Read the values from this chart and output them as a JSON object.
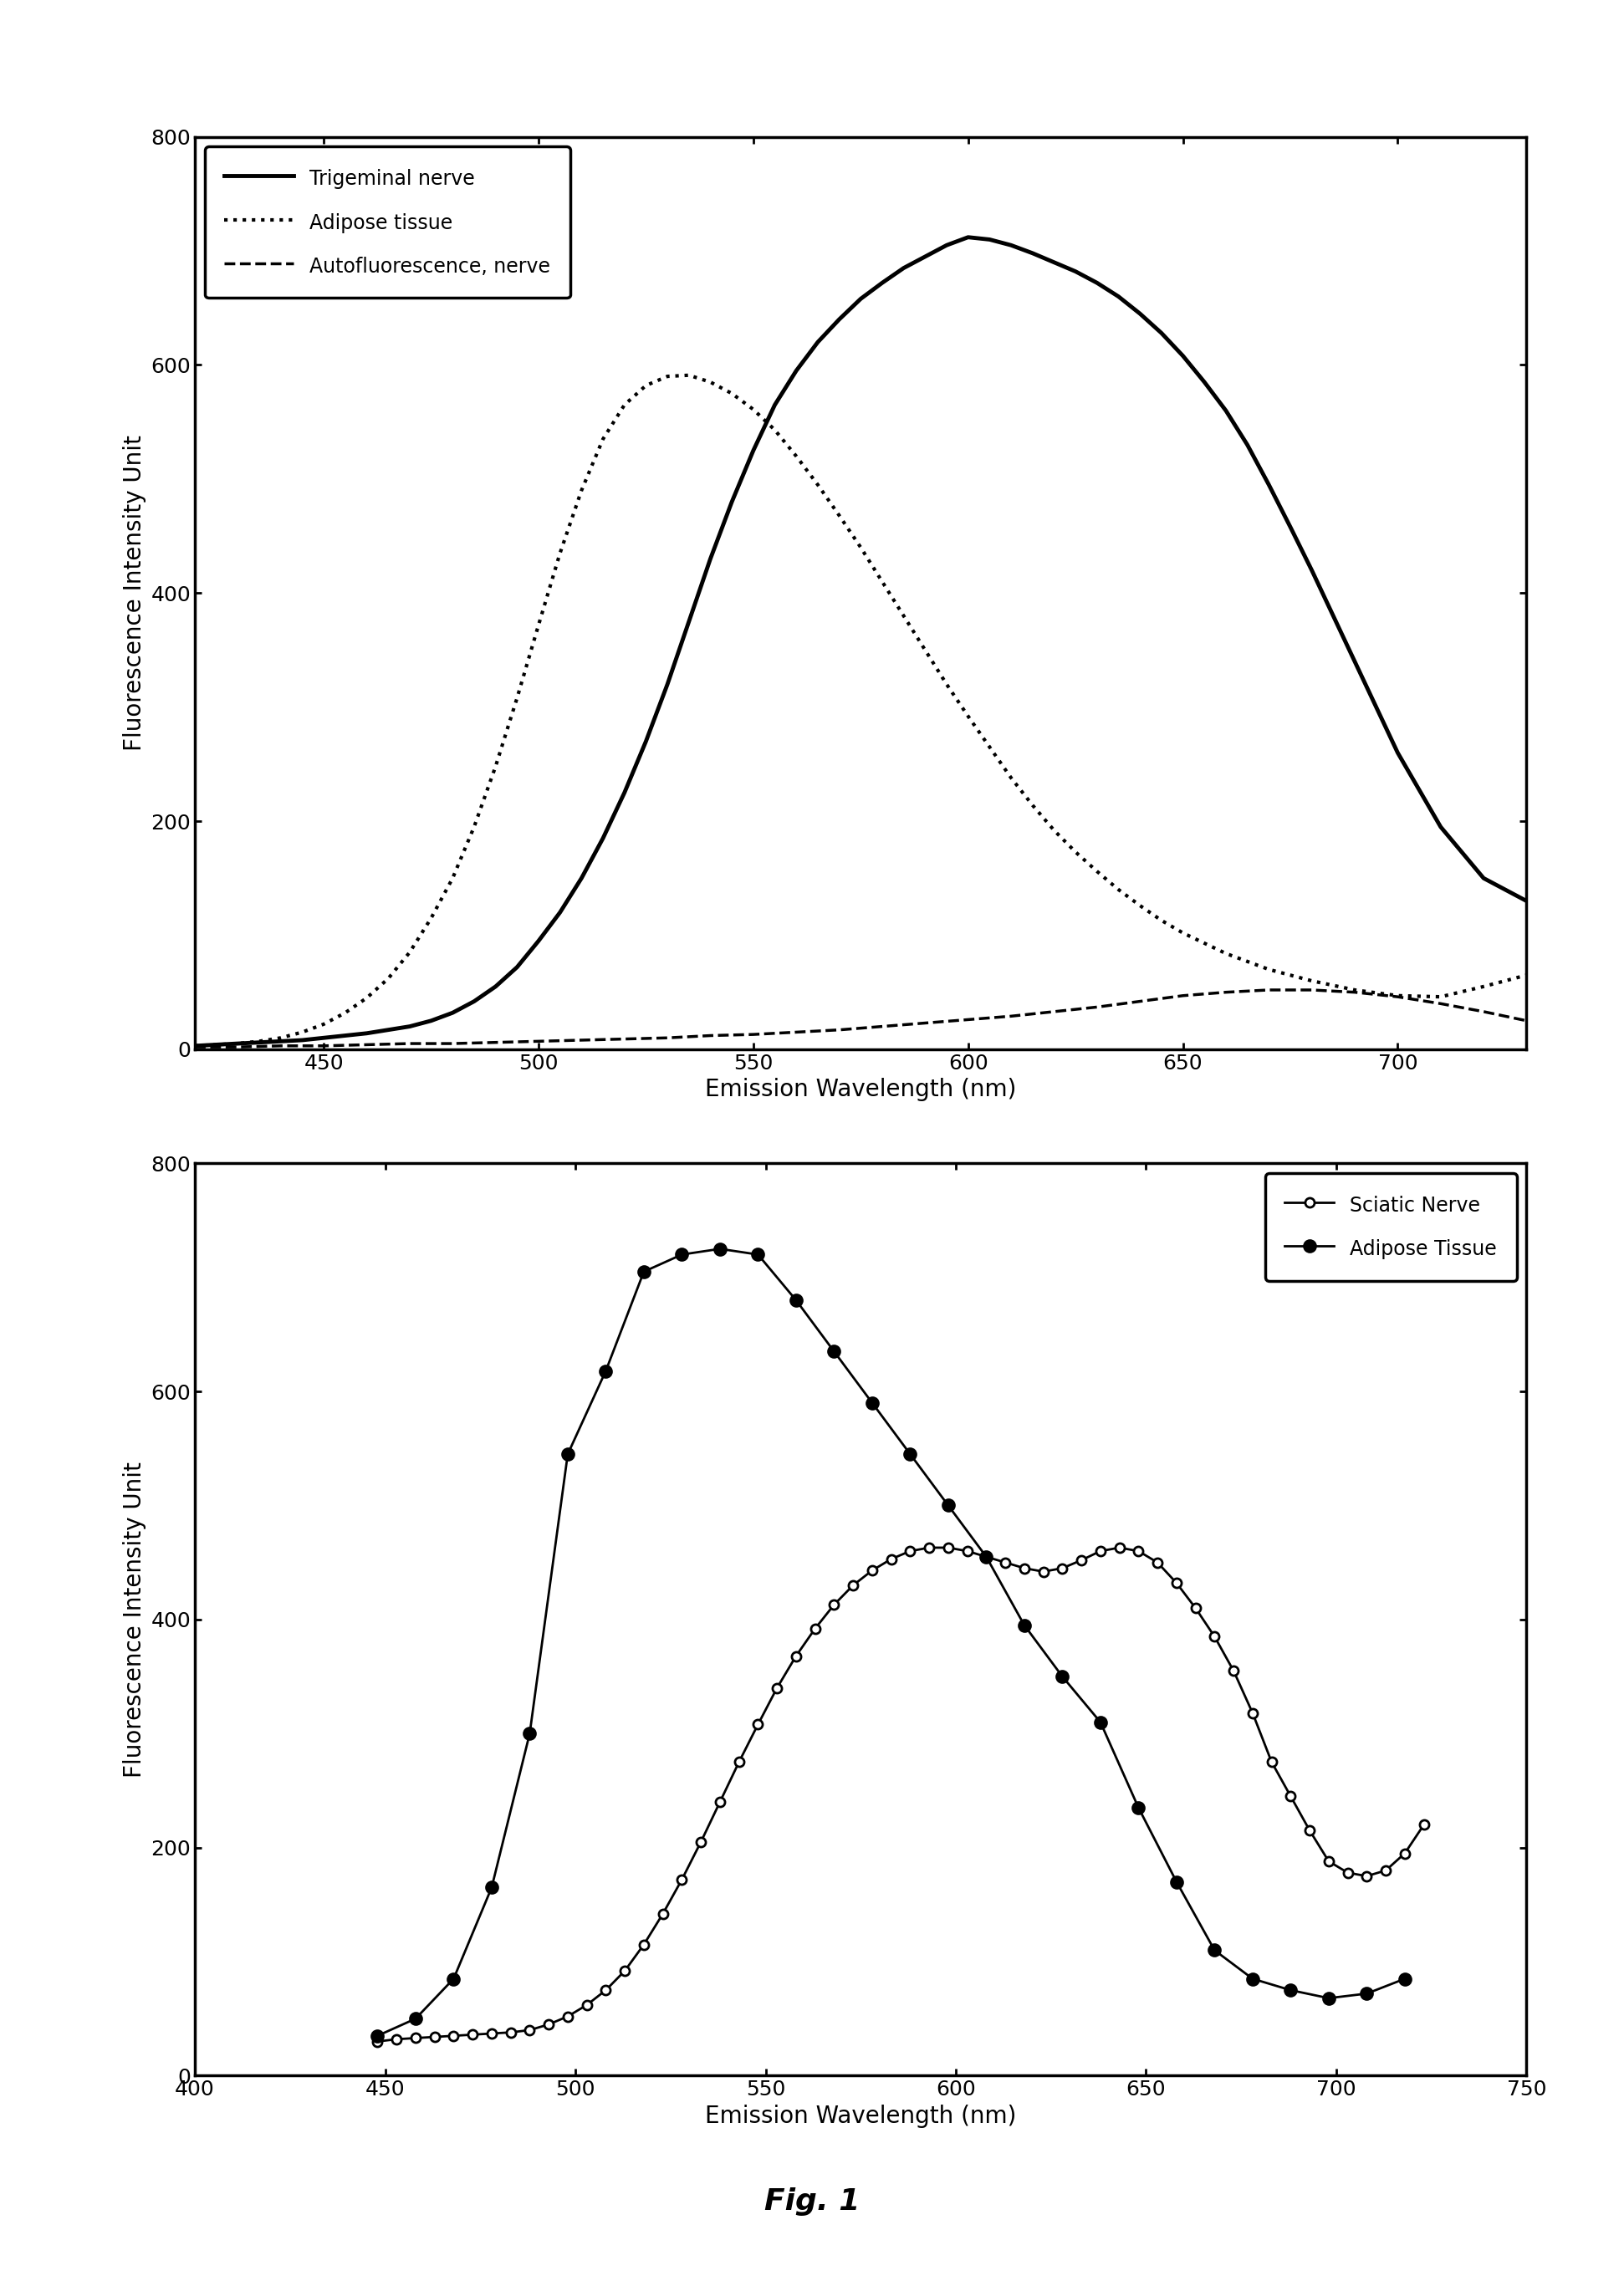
{
  "top_chart": {
    "xlabel": "Emission Wavelength (nm)",
    "ylabel": "Fluorescence Intensity Unit",
    "xlim": [
      420,
      730
    ],
    "ylim": [
      0,
      800
    ],
    "xticks": [
      450,
      500,
      550,
      600,
      650,
      700
    ],
    "yticks": [
      0,
      200,
      400,
      600,
      800
    ],
    "trigeminal_nerve": {
      "x": [
        420,
        425,
        430,
        435,
        440,
        445,
        450,
        455,
        460,
        465,
        470,
        475,
        480,
        485,
        490,
        495,
        500,
        505,
        510,
        515,
        520,
        525,
        530,
        535,
        540,
        545,
        550,
        555,
        560,
        565,
        570,
        575,
        580,
        585,
        590,
        595,
        600,
        605,
        610,
        615,
        620,
        625,
        630,
        635,
        640,
        645,
        650,
        655,
        660,
        665,
        670,
        675,
        680,
        685,
        690,
        695,
        700,
        710,
        720,
        730
      ],
      "y": [
        3,
        4,
        5,
        6,
        7,
        8,
        10,
        12,
        14,
        17,
        20,
        25,
        32,
        42,
        55,
        72,
        95,
        120,
        150,
        185,
        225,
        270,
        320,
        375,
        430,
        480,
        525,
        565,
        595,
        620,
        640,
        658,
        672,
        685,
        695,
        705,
        712,
        710,
        705,
        698,
        690,
        682,
        672,
        660,
        645,
        628,
        608,
        585,
        560,
        530,
        495,
        458,
        420,
        380,
        340,
        300,
        260,
        195,
        150,
        130
      ],
      "linewidth": 3.5,
      "label": "Trigeminal nerve"
    },
    "adipose_tissue": {
      "x": [
        420,
        425,
        430,
        435,
        440,
        445,
        450,
        455,
        460,
        465,
        470,
        475,
        480,
        485,
        490,
        495,
        500,
        505,
        510,
        515,
        520,
        525,
        530,
        535,
        540,
        545,
        550,
        555,
        560,
        565,
        570,
        575,
        580,
        585,
        590,
        595,
        600,
        605,
        610,
        615,
        620,
        625,
        630,
        635,
        640,
        645,
        650,
        660,
        670,
        680,
        690,
        700,
        710,
        720,
        730
      ],
      "y": [
        3,
        4,
        5,
        7,
        10,
        15,
        22,
        32,
        45,
        62,
        85,
        115,
        150,
        195,
        248,
        308,
        372,
        435,
        490,
        535,
        565,
        582,
        590,
        591,
        585,
        575,
        561,
        543,
        520,
        495,
        468,
        440,
        410,
        380,
        350,
        320,
        292,
        265,
        238,
        214,
        192,
        173,
        156,
        140,
        126,
        113,
        102,
        84,
        70,
        60,
        52,
        47,
        46,
        55,
        65
      ],
      "linewidth": 3.0,
      "label": "Adipose tissue"
    },
    "autofluorescence": {
      "x": [
        420,
        430,
        440,
        450,
        460,
        470,
        480,
        490,
        500,
        510,
        520,
        530,
        540,
        550,
        560,
        570,
        580,
        590,
        600,
        610,
        620,
        630,
        640,
        650,
        660,
        670,
        680,
        690,
        700,
        710,
        720,
        730
      ],
      "y": [
        2,
        2,
        3,
        3,
        4,
        5,
        5,
        6,
        7,
        8,
        9,
        10,
        12,
        13,
        15,
        17,
        20,
        23,
        26,
        29,
        33,
        37,
        42,
        47,
        50,
        52,
        52,
        50,
        46,
        40,
        33,
        25
      ],
      "linewidth": 2.5,
      "label": "Autofluorescence, nerve"
    }
  },
  "bottom_chart": {
    "xlabel": "Emission Wavelength (nm)",
    "ylabel": "Fluorescence Intensity Unit",
    "xlim": [
      400,
      750
    ],
    "ylim": [
      0,
      800
    ],
    "xticks": [
      400,
      450,
      500,
      550,
      600,
      650,
      700,
      750
    ],
    "yticks": [
      0,
      200,
      400,
      600,
      800
    ],
    "sciatic_nerve": {
      "x": [
        448,
        453,
        458,
        463,
        468,
        473,
        478,
        483,
        488,
        493,
        498,
        503,
        508,
        513,
        518,
        523,
        528,
        533,
        538,
        543,
        548,
        553,
        558,
        563,
        568,
        573,
        578,
        583,
        588,
        593,
        598,
        603,
        608,
        613,
        618,
        623,
        628,
        633,
        638,
        643,
        648,
        653,
        658,
        663,
        668,
        673,
        678,
        683,
        688,
        693,
        698,
        703,
        708,
        713,
        718,
        723
      ],
      "y": [
        30,
        32,
        33,
        34,
        35,
        36,
        37,
        38,
        40,
        45,
        52,
        62,
        75,
        92,
        115,
        142,
        172,
        205,
        240,
        275,
        308,
        340,
        368,
        392,
        413,
        430,
        443,
        453,
        460,
        463,
        463,
        460,
        455,
        450,
        445,
        442,
        445,
        452,
        460,
        463,
        460,
        450,
        432,
        410,
        385,
        355,
        318,
        275,
        245,
        215,
        188,
        178,
        175,
        180,
        195,
        220
      ],
      "label": "Sciatic Nerve",
      "markersize": 8
    },
    "adipose_tissue": {
      "x": [
        448,
        458,
        468,
        478,
        488,
        498,
        508,
        518,
        528,
        538,
        548,
        558,
        568,
        578,
        588,
        598,
        608,
        618,
        628,
        638,
        648,
        658,
        668,
        678,
        688,
        698,
        708,
        718
      ],
      "y": [
        35,
        50,
        85,
        165,
        300,
        545,
        618,
        705,
        720,
        725,
        720,
        680,
        635,
        590,
        545,
        500,
        455,
        395,
        350,
        310,
        235,
        170,
        110,
        85,
        75,
        68,
        72,
        85
      ],
      "label": "Adipose Tissue",
      "markersize": 10
    }
  },
  "fig1_label": "Fig. 1",
  "background_color": "#ffffff",
  "line_color": "#000000"
}
